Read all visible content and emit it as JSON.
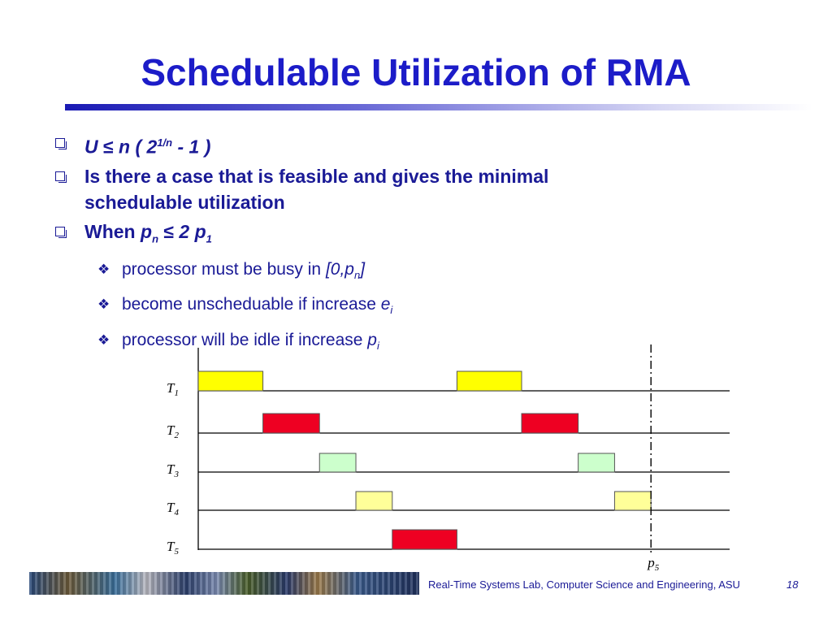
{
  "title": "Schedulable Utilization of RMA",
  "bullets": {
    "b1": {
      "u": "U",
      "le": "≤",
      "rest": "n ( 2",
      "sup": "1/n",
      "tail": " - 1 )"
    },
    "b2": {
      "line1": "Is there a case that is feasible and gives the minimal",
      "line2": "schedulable utilization"
    },
    "b3": {
      "prefix": "When ",
      "p": "p",
      "n": "n",
      "le": "≤",
      "two": "2 ",
      "p1": "p",
      "one": "1"
    },
    "sub": [
      {
        "text": "processor must be busy in ",
        "ital": "[0,p",
        "sub": "n",
        "end": "]"
      },
      {
        "text": "become unscheduable if increase ",
        "ital": "e",
        "sub": "i",
        "end": ""
      },
      {
        "text": "processor will be idle if increase ",
        "ital": "p",
        "sub": "i",
        "end": ""
      }
    ]
  },
  "diagram": {
    "tasks": [
      {
        "label": "T",
        "sub": "1",
        "color": "#ffff00",
        "jobs": [
          [
            0,
            8
          ],
          [
            32,
            40
          ]
        ]
      },
      {
        "label": "T",
        "sub": "2",
        "color": "#ee0022",
        "jobs": [
          [
            8,
            15
          ],
          [
            40,
            47
          ]
        ]
      },
      {
        "label": "T",
        "sub": "3",
        "color": "#ccffcc",
        "jobs": [
          [
            15,
            19.5
          ],
          [
            47,
            51.5
          ]
        ]
      },
      {
        "label": "T",
        "sub": "4",
        "color": "#ffff99",
        "jobs": [
          [
            19.5,
            24
          ],
          [
            51.5,
            56
          ]
        ]
      },
      {
        "label": "T",
        "sub": "5",
        "color": "#ee0022",
        "jobs": [
          [
            24,
            32
          ]
        ]
      }
    ],
    "marker": {
      "at": 56,
      "label": "p",
      "sub": "5"
    },
    "time_end": 66
  },
  "footer": {
    "text": "Real-Time Systems Lab, Computer Science and Engineering, ASU",
    "page": "18"
  }
}
